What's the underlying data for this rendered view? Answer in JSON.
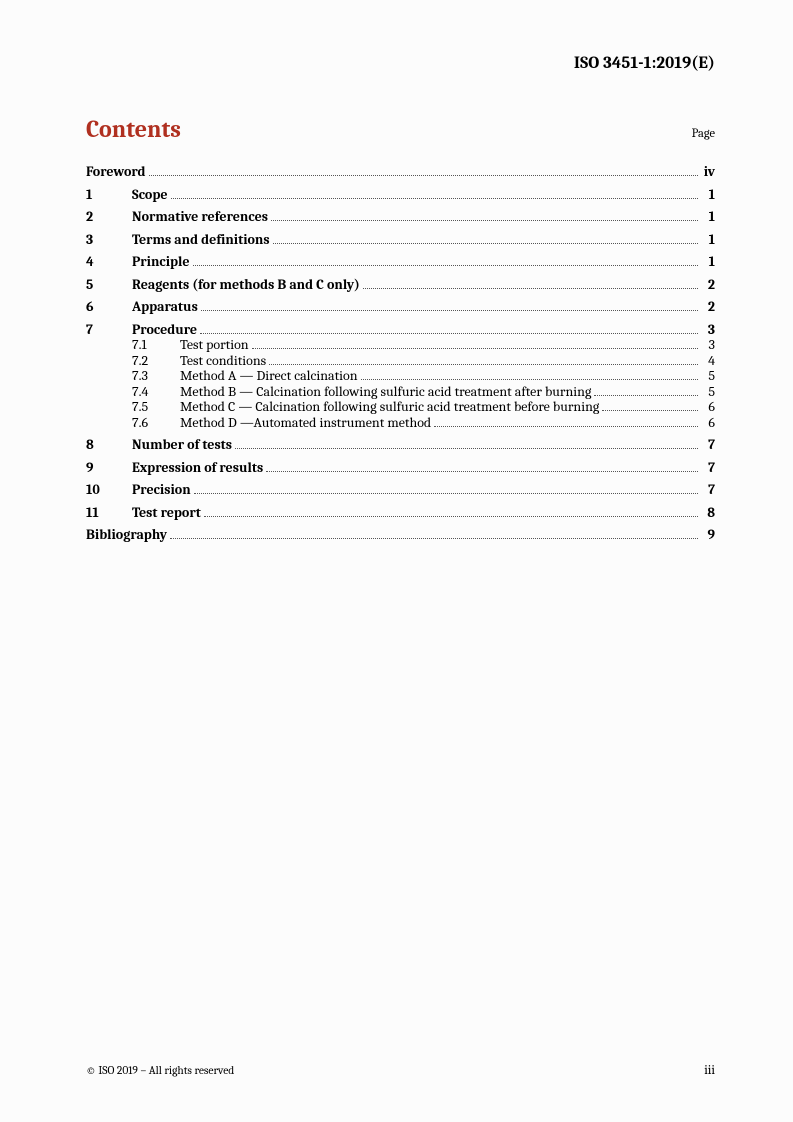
{
  "header": {
    "doc_id": "ISO 3451-1:2019(E)"
  },
  "contents": {
    "heading": "Contents",
    "page_label": "Page"
  },
  "colors": {
    "accent": "#b03020",
    "text": "#000000",
    "leader": "#555555",
    "background": "#fcfcfc"
  },
  "typography": {
    "body_family": "Cambria, 'Times New Roman', Georgia, serif",
    "heading_size_pt": 18,
    "body_size_pt": 10.5,
    "small_size_pt": 9.5
  },
  "toc": {
    "items": [
      {
        "num": "",
        "title": "Foreword",
        "page": "iv",
        "bold": true
      },
      {
        "num": "1",
        "title": "Scope",
        "page": "1",
        "bold": true
      },
      {
        "num": "2",
        "title": "Normative references",
        "page": "1",
        "bold": true
      },
      {
        "num": "3",
        "title": "Terms and definitions",
        "page": "1",
        "bold": true
      },
      {
        "num": "4",
        "title": "Principle",
        "page": "1",
        "bold": true
      },
      {
        "num": "5",
        "title": "Reagents (for methods B and C only)",
        "page": "2",
        "bold": true
      },
      {
        "num": "6",
        "title": "Apparatus",
        "page": "2",
        "bold": true
      },
      {
        "num": "7",
        "title": "Procedure",
        "page": "3",
        "bold": true,
        "children": [
          {
            "num": "7.1",
            "title": "Test portion",
            "page": "3"
          },
          {
            "num": "7.2",
            "title": "Test conditions",
            "page": "4"
          },
          {
            "num": "7.3",
            "title": "Method A — Direct calcination",
            "page": "5"
          },
          {
            "num": "7.4",
            "title": "Method B — Calcination following sulfuric acid treatment after burning",
            "page": "5"
          },
          {
            "num": "7.5",
            "title": "Method C — Calcination following sulfuric acid treatment before burning",
            "page": "6"
          },
          {
            "num": "7.6",
            "title": "Method D —Automated instrument method",
            "page": "6"
          }
        ]
      },
      {
        "num": "8",
        "title": "Number of tests",
        "page": "7",
        "bold": true
      },
      {
        "num": "9",
        "title": "Expression of results",
        "page": "7",
        "bold": true
      },
      {
        "num": "10",
        "title": "Precision",
        "page": "7",
        "bold": true
      },
      {
        "num": "11",
        "title": "Test report",
        "page": "8",
        "bold": true
      },
      {
        "num": "",
        "title": "Bibliography",
        "page": "9",
        "bold": true
      }
    ]
  },
  "footer": {
    "copyright": "© ISO 2019 – All rights reserved",
    "page_number": "iii"
  }
}
